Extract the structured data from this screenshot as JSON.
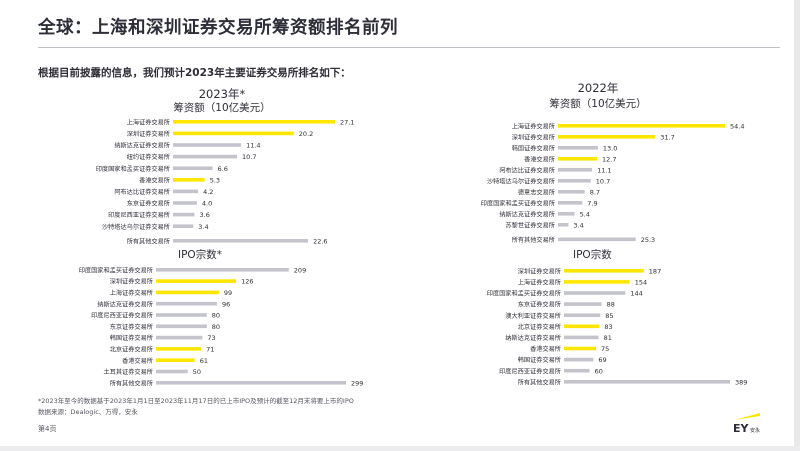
{
  "title": "全球：上海和深圳证券交易所筹资额排名前列",
  "intro": "根据目前披露的信息，我们预计2023年主要证券交易所排名如下：",
  "footnote_1": "*2023年至今的数据基于2023年1月1日至2023年11月17日的已上市IPO及预计的截至12月末将要上市的IPO",
  "footnote_2": "数据来源：Dealogic、万得，安永",
  "page": "第4页",
  "logo_text": "EY",
  "logo_sub": "安永",
  "colors": {
    "highlight": "#ffe600",
    "normal": "#c4c4cd",
    "text": "#2e2e38"
  },
  "chart_data": [
    {
      "type": "bar",
      "title": "2023年*",
      "subtitle": "筹资额（10亿美元）",
      "categories": [
        "上海证券交易所",
        "深圳证券交易所",
        "纳斯达克证券交易所",
        "纽约证券交易所",
        "印度国家和孟买证券交易所",
        "香港交易所",
        "阿布达比证券交易所",
        "东京证券交易所",
        "印度尼西亚证券交易所",
        "沙特塔达乌尔证券交易所",
        "所有其他交易所"
      ],
      "values": [
        27.1,
        20.2,
        11.4,
        10.7,
        6.6,
        5.3,
        4.2,
        4.0,
        3.6,
        3.4,
        22.6
      ],
      "value_labels": [
        "27.1",
        "20.2",
        "11.4",
        "10.7",
        "6.6",
        "5.3",
        "4.2",
        "4.0",
        "3.6",
        "3.4",
        "22.6"
      ],
      "highlight": [
        true,
        true,
        false,
        false,
        false,
        true,
        false,
        false,
        false,
        false,
        false
      ],
      "gap_before_last": true
    },
    {
      "type": "bar",
      "title": "",
      "subtitle": "IPO宗数*",
      "categories": [
        "印度国家和孟买证券交易所",
        "深圳证券交易所",
        "上海证券交易所",
        "纳斯达克证券交易所",
        "印度尼西亚证券交易所",
        "东京证券交易所",
        "韩国证券交易所",
        "北京证券交易所",
        "香港交易所",
        "土耳其证券交易所",
        "所有其他交易所"
      ],
      "values": [
        209,
        126,
        99,
        96,
        80,
        80,
        73,
        71,
        61,
        50,
        299
      ],
      "value_labels": [
        "209",
        "126",
        "99",
        "96",
        "80",
        "80",
        "73",
        "71",
        "61",
        "50",
        "299"
      ],
      "highlight": [
        false,
        true,
        true,
        false,
        false,
        false,
        false,
        true,
        true,
        false,
        false
      ],
      "gap_before_last": false
    },
    {
      "type": "bar",
      "title": "2022年",
      "subtitle": "筹资额（10亿美元）",
      "categories": [
        "上海证券交易所",
        "深圳证券交易所",
        "韩国证券交易所",
        "香港交易所",
        "阿布达比证券交易所",
        "沙特塔达乌尔证券交易所",
        "德意志交易所",
        "印度国家和孟买证券交易所",
        "纳斯达克证券交易所",
        "苏黎世证券交易所",
        "所有其他交易所"
      ],
      "values": [
        54.4,
        31.7,
        13.0,
        12.7,
        11.1,
        10.7,
        8.7,
        7.9,
        5.4,
        3.4,
        25.3
      ],
      "value_labels": [
        "54.4",
        "31.7",
        "13.0",
        "12.7",
        "11.1",
        "10.7",
        "8.7",
        "7.9",
        "5.4",
        "3.4",
        "25.3"
      ],
      "highlight": [
        true,
        true,
        false,
        true,
        false,
        false,
        false,
        false,
        false,
        false,
        false
      ],
      "gap_before_last": true
    },
    {
      "type": "bar",
      "title": "",
      "subtitle": "IPO宗数",
      "categories": [
        "深圳证券交易所",
        "上海证券交易所",
        "印度国家和孟买证券交易所",
        "东京证券交易所",
        "澳大利亚证券交易所",
        "北京证券交易所",
        "纳斯达克证券交易所",
        "香港交易所",
        "韩国证券交易所",
        "印度尼西亚证券交易所",
        "所有其他交易所"
      ],
      "values": [
        187,
        154,
        144,
        88,
        85,
        83,
        81,
        75,
        69,
        60,
        389
      ],
      "value_labels": [
        "187",
        "154",
        "144",
        "88",
        "85",
        "83",
        "81",
        "75",
        "69",
        "60",
        "389"
      ],
      "highlight": [
        true,
        true,
        false,
        false,
        false,
        true,
        false,
        true,
        false,
        false,
        false
      ],
      "gap_before_last": false
    }
  ]
}
